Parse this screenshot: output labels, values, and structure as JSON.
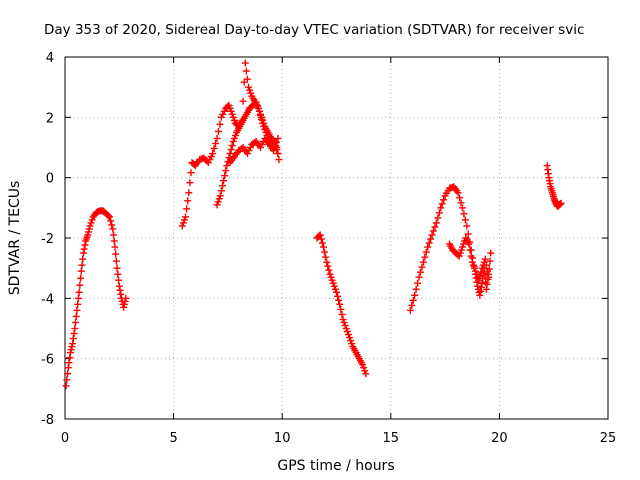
{
  "chart_data": {
    "type": "scatter",
    "title": "Day 353 of 2020, Sidereal Day-to-day VTEC variation (SDTVAR) for receiver svic",
    "xlabel": "GPS time / hours",
    "ylabel": "SDTVAR / TECUs",
    "xlim": [
      0,
      25
    ],
    "ylim": [
      -8,
      4
    ],
    "xticks": [
      0,
      5,
      10,
      15,
      20,
      25
    ],
    "yticks": [
      -8,
      -6,
      -4,
      -2,
      0,
      2,
      4
    ],
    "xtick_labels": [
      "0",
      "5",
      "10",
      "15",
      "20",
      "25"
    ],
    "ytick_labels": [
      "-8",
      "-6",
      "-4",
      "-2",
      "0",
      "2",
      "4"
    ],
    "grid": true,
    "marker": "+",
    "marker_color": "#ff0000",
    "series": [
      {
        "name": "segment-1",
        "x": [
          0.05,
          0.15,
          0.25,
          0.35,
          0.45,
          0.55,
          0.65,
          0.75,
          0.85,
          0.95,
          1.05,
          1.15,
          1.3,
          1.45,
          1.6,
          1.75,
          1.9,
          2.05,
          2.2,
          2.3,
          2.4,
          2.5,
          2.6,
          2.7,
          2.8
        ],
        "y": [
          -6.9,
          -6.3,
          -5.8,
          -5.5,
          -5.0,
          -4.4,
          -3.8,
          -3.1,
          -2.5,
          -2.1,
          -1.9,
          -1.6,
          -1.3,
          -1.15,
          -1.1,
          -1.1,
          -1.2,
          -1.3,
          -1.7,
          -2.3,
          -3.0,
          -3.6,
          -4.0,
          -4.3,
          -4.0
        ]
      },
      {
        "name": "segment-2a",
        "x": [
          5.4,
          5.55,
          5.7,
          5.85,
          6.0,
          6.2,
          6.4,
          6.6,
          6.8,
          7.0,
          7.2,
          7.4,
          7.55,
          7.7,
          7.85,
          8.0,
          8.15,
          8.3,
          8.45,
          8.6,
          8.75,
          8.9,
          9.05,
          9.2,
          9.35,
          9.5,
          9.65,
          9.8
        ],
        "y": [
          -1.6,
          -1.3,
          -0.5,
          0.5,
          0.4,
          0.6,
          0.65,
          0.5,
          0.8,
          1.3,
          2.0,
          2.3,
          2.4,
          2.1,
          1.8,
          1.7,
          1.9,
          3.8,
          3.0,
          2.7,
          2.5,
          2.3,
          2.0,
          1.7,
          1.5,
          1.3,
          1.2,
          0.8
        ]
      },
      {
        "name": "segment-2b",
        "x": [
          7.0,
          7.15,
          7.3,
          7.45,
          7.6,
          7.75,
          7.9,
          8.05,
          8.2,
          8.35,
          8.5,
          8.65,
          8.8,
          8.95,
          9.1,
          9.25,
          9.4,
          9.55,
          9.7,
          9.85
        ],
        "y": [
          -0.9,
          -0.6,
          -0.1,
          0.4,
          0.8,
          1.2,
          1.5,
          1.7,
          1.9,
          2.1,
          2.3,
          2.4,
          2.5,
          2.2,
          1.8,
          1.5,
          1.2,
          1.0,
          1.2,
          0.6
        ]
      },
      {
        "name": "segment-2c",
        "x": [
          7.6,
          7.8,
          8.0,
          8.2,
          8.4,
          8.6,
          8.8,
          9.0,
          9.2,
          9.4,
          9.6,
          9.8
        ],
        "y": [
          0.5,
          0.7,
          0.9,
          1.0,
          0.8,
          1.1,
          1.2,
          1.0,
          1.3,
          1.1,
          0.9,
          1.3
        ]
      },
      {
        "name": "segment-3",
        "x": [
          11.6,
          11.75,
          11.9,
          12.05,
          12.2,
          12.35,
          12.5,
          12.65,
          12.8,
          12.95,
          13.1,
          13.25,
          13.4,
          13.55,
          13.7,
          13.85
        ],
        "y": [
          -2.0,
          -1.9,
          -2.3,
          -2.8,
          -3.2,
          -3.5,
          -3.8,
          -4.2,
          -4.7,
          -5.0,
          -5.3,
          -5.6,
          -5.8,
          -6.0,
          -6.2,
          -6.5
        ]
      },
      {
        "name": "segment-4a",
        "x": [
          15.9,
          16.1,
          16.3,
          16.5,
          16.7,
          16.9,
          17.1,
          17.3,
          17.5,
          17.7,
          17.9,
          18.1,
          18.3,
          18.5,
          18.7,
          18.9,
          19.0,
          19.1,
          19.2,
          19.3,
          19.4,
          19.5
        ],
        "y": [
          -4.4,
          -3.9,
          -3.3,
          -2.8,
          -2.3,
          -1.9,
          -1.5,
          -1.0,
          -0.6,
          -0.35,
          -0.3,
          -0.5,
          -1.0,
          -1.6,
          -2.4,
          -3.2,
          -3.6,
          -3.9,
          -3.5,
          -3.0,
          -3.7,
          -3.2
        ]
      },
      {
        "name": "segment-4b",
        "x": [
          17.7,
          17.85,
          18.0,
          18.15,
          18.3,
          18.45,
          18.6,
          18.75,
          18.9,
          19.05,
          19.2,
          19.35,
          19.5,
          19.6
        ],
        "y": [
          -2.2,
          -2.4,
          -2.5,
          -2.6,
          -2.3,
          -2.0,
          -2.2,
          -2.8,
          -3.1,
          -3.4,
          -3.0,
          -2.7,
          -3.3,
          -2.5
        ]
      },
      {
        "name": "segment-5",
        "x": [
          22.2,
          22.28,
          22.36,
          22.44,
          22.52,
          22.6,
          22.68,
          22.76,
          22.84
        ],
        "y": [
          0.4,
          0.0,
          -0.3,
          -0.5,
          -0.7,
          -0.85,
          -0.95,
          -0.9,
          -0.85
        ]
      }
    ]
  }
}
